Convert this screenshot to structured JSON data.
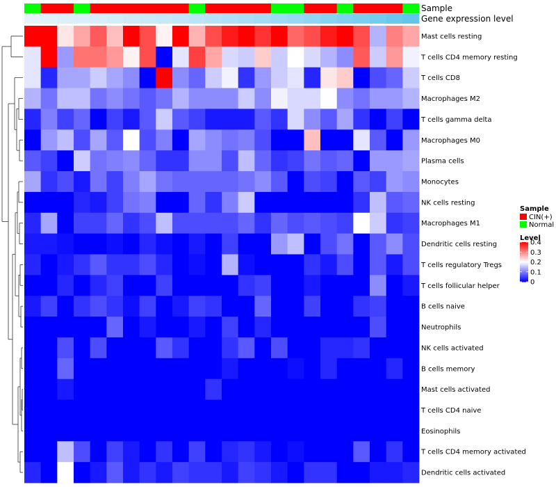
{
  "chart_data": {
    "type": "heatmap",
    "title": "",
    "annotation_rows": [
      "Sample",
      "Gene expression level"
    ],
    "sample_groups": [
      "Normal",
      "CIN(+)",
      "CIN(+)",
      "Normal",
      "CIN(+)",
      "CIN(+)",
      "CIN(+)",
      "CIN(+)",
      "CIN(+)",
      "CIN(+)",
      "Normal",
      "CIN(+)",
      "CIN(+)",
      "CIN(+)",
      "CIN(+)",
      "Normal",
      "Normal",
      "CIN(+)",
      "CIN(+)",
      "Normal",
      "CIN(+)",
      "CIN(+)",
      "CIN(+)",
      "Normal"
    ],
    "expression_levels": [
      0.02,
      0.04,
      0.06,
      0.08,
      0.1,
      0.13,
      0.16,
      0.19,
      0.22,
      0.26,
      0.3,
      0.34,
      0.38,
      0.42,
      0.46,
      0.5,
      0.55,
      0.6,
      0.65,
      0.7,
      0.75,
      0.8,
      0.86,
      0.92
    ],
    "rows": [
      "Mast cells resting",
      "T cells CD4 memory resting",
      "T cells CD8",
      "Macrophages M2",
      "T cells gamma delta",
      "Macrophages M0",
      "Plasma cells",
      "Monocytes",
      "NK cells resting",
      "Macrophages M1",
      "Dendritic cells resting",
      "T cells regulatory  Tregs",
      "T cells follicular helper",
      "B cells naive",
      "Neutrophils",
      "NK cells activated",
      "B cells memory",
      "Mast cells activated",
      "T cells CD4 naive",
      "Eosinophils",
      "T cells CD4 memory activated",
      "Dendritic cells activated"
    ],
    "values": [
      [
        0.4,
        0.4,
        0.22,
        0.27,
        0.33,
        0.25,
        0.4,
        0.34,
        0.21,
        0.4,
        0.26,
        0.34,
        0.38,
        0.4,
        0.36,
        0.4,
        0.32,
        0.34,
        0.38,
        0.4,
        0.34,
        0.14,
        0.3,
        0.27
      ],
      [
        0.18,
        0.4,
        0.12,
        0.31,
        0.31,
        0.28,
        0.21,
        0.34,
        0.0,
        0.18,
        0.35,
        0.27,
        0.17,
        0.16,
        0.24,
        0.16,
        0.2,
        0.17,
        0.14,
        0.11,
        0.33,
        0.16,
        0.28,
        0.19
      ],
      [
        0.18,
        0.03,
        0.13,
        0.13,
        0.16,
        0.13,
        0.11,
        0.0,
        0.4,
        0.11,
        0.08,
        0.16,
        0.19,
        0.04,
        0.12,
        0.16,
        0.18,
        0.03,
        0.22,
        0.24,
        0.0,
        0.06,
        0.08,
        0.16
      ],
      [
        0.14,
        0.09,
        0.15,
        0.15,
        0.09,
        0.11,
        0.09,
        0.07,
        0.09,
        0.14,
        0.11,
        0.11,
        0.11,
        0.16,
        0.11,
        0.19,
        0.17,
        0.17,
        0.2,
        0.11,
        0.09,
        0.12,
        0.12,
        0.14
      ],
      [
        0.03,
        0.1,
        0.05,
        0.08,
        0.0,
        0.05,
        0.02,
        0.07,
        0.16,
        0.07,
        0.05,
        0.02,
        0.02,
        0.02,
        0.07,
        0.04,
        0.17,
        0.11,
        0.07,
        0.13,
        0.04,
        0.0,
        0.05,
        0.0
      ],
      [
        0.0,
        0.12,
        0.15,
        0.06,
        0.13,
        0.07,
        0.2,
        0.06,
        0.1,
        0.0,
        0.13,
        0.11,
        0.09,
        0.1,
        0.06,
        0.0,
        0.0,
        0.25,
        0.0,
        0.0,
        0.18,
        0.07,
        0.0,
        0.12
      ],
      [
        0.07,
        0.05,
        0.0,
        0.16,
        0.09,
        0.1,
        0.11,
        0.08,
        0.04,
        0.04,
        0.11,
        0.11,
        0.06,
        0.15,
        0.08,
        0.04,
        0.05,
        0.09,
        0.07,
        0.08,
        0.0,
        0.12,
        0.12,
        0.13
      ],
      [
        0.13,
        0.04,
        0.06,
        0.02,
        0.09,
        0.05,
        0.1,
        0.13,
        0.09,
        0.08,
        0.08,
        0.08,
        0.08,
        0.09,
        0.11,
        0.07,
        0.0,
        0.06,
        0.05,
        0.0,
        0.07,
        0.05,
        0.12,
        0.11
      ],
      [
        0.0,
        0.0,
        0.0,
        0.03,
        0.02,
        0.05,
        0.09,
        0.1,
        0.0,
        0.0,
        0.08,
        0.04,
        0.1,
        0.16,
        0.0,
        0.0,
        0.0,
        0.0,
        0.0,
        0.0,
        0.04,
        0.15,
        0.07,
        0.08
      ],
      [
        0.03,
        0.13,
        0.0,
        0.05,
        0.05,
        0.08,
        0.04,
        0.06,
        0.15,
        0.06,
        0.06,
        0.06,
        0.06,
        0.08,
        0.04,
        0.08,
        0.06,
        0.07,
        0.06,
        0.05,
        0.2,
        0.16,
        0.04,
        0.05
      ],
      [
        0.02,
        0.02,
        0.01,
        0.0,
        0.0,
        0.01,
        0.0,
        0.03,
        0.01,
        0.0,
        0.02,
        0.0,
        0.05,
        0.0,
        0.0,
        0.12,
        0.15,
        0.0,
        0.06,
        0.09,
        0.0,
        0.07,
        0.11,
        0.06
      ],
      [
        0.03,
        0.0,
        0.02,
        0.04,
        0.07,
        0.04,
        0.04,
        0.06,
        0.03,
        0.0,
        0.01,
        0.0,
        0.14,
        0.01,
        0.0,
        0.0,
        0.0,
        0.04,
        0.02,
        0.06,
        0.0,
        0.07,
        0.02,
        0.06
      ],
      [
        0.0,
        0.0,
        0.03,
        0.0,
        0.03,
        0.05,
        0.0,
        0.0,
        0.05,
        0.0,
        0.0,
        0.0,
        0.0,
        0.04,
        0.05,
        0.0,
        0.0,
        0.02,
        0.0,
        0.0,
        0.0,
        0.11,
        0.0,
        0.02
      ],
      [
        0.02,
        0.05,
        0.0,
        0.04,
        0.06,
        0.04,
        0.01,
        0.05,
        0.0,
        0.02,
        0.05,
        0.04,
        0.0,
        0.0,
        0.08,
        0.0,
        0.0,
        0.05,
        0.0,
        0.0,
        0.04,
        0.05,
        0.0,
        0.0
      ],
      [
        0.0,
        0.0,
        0.0,
        0.0,
        0.0,
        0.08,
        0.0,
        0.02,
        0.0,
        0.0,
        0.02,
        0.0,
        0.05,
        0.0,
        0.03,
        0.0,
        0.0,
        0.0,
        0.0,
        0.0,
        0.0,
        0.06,
        0.0,
        0.0
      ],
      [
        0.0,
        0.0,
        0.06,
        0.0,
        0.06,
        0.0,
        0.0,
        0.0,
        0.07,
        0.04,
        0.0,
        0.0,
        0.04,
        0.07,
        0.0,
        0.06,
        0.0,
        0.0,
        0.03,
        0.03,
        0.04,
        0.0,
        0.0,
        0.0
      ],
      [
        0.0,
        0.0,
        0.08,
        0.0,
        0.0,
        0.0,
        0.0,
        0.0,
        0.0,
        0.0,
        0.0,
        0.0,
        0.02,
        0.0,
        0.0,
        0.0,
        0.01,
        0.0,
        0.03,
        0.0,
        0.0,
        0.0,
        0.03,
        0.0
      ],
      [
        0.0,
        0.0,
        0.02,
        0.0,
        0.0,
        0.0,
        0.0,
        0.0,
        0.0,
        0.0,
        0.0,
        0.04,
        0.0,
        0.0,
        0.0,
        0.0,
        0.0,
        0.0,
        0.0,
        0.0,
        0.0,
        0.0,
        0.0,
        0.0
      ],
      [
        0.0,
        0.0,
        0.0,
        0.0,
        0.0,
        0.0,
        0.0,
        0.0,
        0.0,
        0.0,
        0.0,
        0.0,
        0.0,
        0.0,
        0.0,
        0.0,
        0.0,
        0.0,
        0.0,
        0.0,
        0.0,
        0.0,
        0.0,
        0.0
      ],
      [
        0.0,
        0.0,
        0.0,
        0.0,
        0.0,
        0.0,
        0.0,
        0.0,
        0.0,
        0.0,
        0.0,
        0.0,
        0.0,
        0.0,
        0.0,
        0.0,
        0.0,
        0.0,
        0.0,
        0.0,
        0.0,
        0.0,
        0.0,
        0.0
      ],
      [
        0.0,
        0.0,
        0.15,
        0.06,
        0.0,
        0.05,
        0.02,
        0.0,
        0.04,
        0.0,
        0.05,
        0.0,
        0.03,
        0.04,
        0.02,
        0.0,
        0.01,
        0.0,
        0.0,
        0.0,
        0.07,
        0.0,
        0.04,
        0.0
      ],
      [
        0.03,
        0.0,
        0.2,
        0.0,
        0.02,
        0.07,
        0.02,
        0.04,
        0.02,
        0.05,
        0.04,
        0.04,
        0.02,
        0.05,
        0.04,
        0.02,
        0.0,
        0.04,
        0.04,
        0.0,
        0.0,
        0.02,
        0.02,
        0.03
      ]
    ],
    "legend": {
      "sample_title": "Sample",
      "sample_entries": [
        {
          "label": "CIN(+)",
          "color": "#ff0000"
        },
        {
          "label": "Normal",
          "color": "#00ff00"
        }
      ],
      "level_title": "Level",
      "level_ticks": [
        {
          "value": 0.4,
          "label": "0.4"
        },
        {
          "value": 0.3,
          "label": "0.3"
        },
        {
          "value": 0.2,
          "label": "0.2"
        },
        {
          "value": 0.1,
          "label": "0.1"
        },
        {
          "value": 0.0,
          "label": "0"
        }
      ],
      "level_range": [
        0,
        0.4
      ],
      "placement": "right"
    },
    "colors": {
      "low": "#0000ff",
      "mid": "#ffffff",
      "high": "#ff0000",
      "expr_low": "#e6f3fb",
      "expr_high": "#56c1ea"
    }
  }
}
